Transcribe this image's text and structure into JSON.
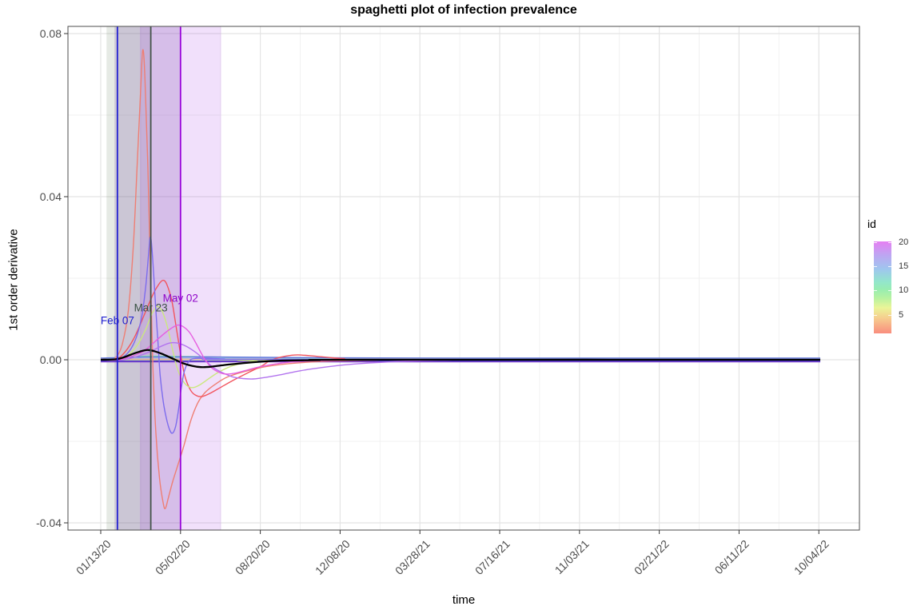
{
  "chart_data": {
    "type": "line",
    "title": "spaghetti plot of infection prevalence",
    "xlabel": "time",
    "ylabel": "1st order derivative",
    "x_axis": {
      "tick_labels": [
        "01/13/20",
        "05/02/20",
        "08/20/20",
        "12/08/20",
        "03/28/21",
        "07/16/21",
        "11/03/21",
        "02/21/22",
        "06/11/22",
        "10/04/22"
      ],
      "tick_t_days": [
        0,
        110,
        220,
        330,
        440,
        550,
        660,
        770,
        880,
        990
      ],
      "minor_t_days": [
        55,
        165,
        275,
        385,
        495,
        605,
        715,
        825,
        935
      ]
    },
    "y_axis": {
      "tick_labels": [
        "0.08",
        "0.04",
        "0.00",
        "-0.04"
      ],
      "tick_values": [
        0.08,
        0.04,
        0.0,
        -0.04
      ],
      "minor_values": [
        0.06,
        0.02,
        -0.02
      ],
      "range": [
        -0.0417,
        0.0817
      ]
    },
    "grid": {
      "major_color": "#e4e4e4",
      "minor_color": "#f0f0f0",
      "panel_border": "#4d4d4d",
      "background": "#ffffff"
    },
    "vlines": [
      {
        "label": "Feb 07",
        "t": 23,
        "color": "#2323d2",
        "label_color": "#1f1fd0",
        "label_v": 0.0096
      },
      {
        "label": "Mar 23",
        "t": 69,
        "color": "#44544a",
        "label_color": "#3a5244",
        "label_v": 0.0127
      },
      {
        "label": "May 02",
        "t": 110,
        "color": "#9806da",
        "label_color": "#8f06c9",
        "label_v": 0.0151
      }
    ],
    "bands": [
      {
        "t0": 8,
        "t1": 68,
        "color": "rgba(90,115,80,0.15)"
      },
      {
        "t0": 19,
        "t1": 110,
        "color": "rgba(110,75,160,0.22)"
      },
      {
        "t0": 54,
        "t1": 166,
        "color": "rgba(170,70,230,0.17)"
      }
    ],
    "legend": {
      "title": "id",
      "tick_labels": [
        "20",
        "15",
        "10",
        "5"
      ],
      "tick_ids": [
        20,
        15,
        10,
        5
      ],
      "id_top": 20.2,
      "id_bottom": 1.1,
      "gradient_stops": [
        {
          "pos": 0.0,
          "color": "#e57ff2"
        },
        {
          "pos": 0.15,
          "color": "#bda6f2"
        },
        {
          "pos": 0.3,
          "color": "#9fc6ee"
        },
        {
          "pos": 0.44,
          "color": "#93e6cb"
        },
        {
          "pos": 0.52,
          "color": "#98edb1"
        },
        {
          "pos": 0.62,
          "color": "#b8f2a0"
        },
        {
          "pos": 0.72,
          "color": "#eaf598"
        },
        {
          "pos": 0.84,
          "color": "#f6cb8e"
        },
        {
          "pos": 1.0,
          "color": "#f98d7e"
        }
      ]
    },
    "series": [
      {
        "name": "id-2-flat",
        "color": "#f6b17c",
        "width": 1.3,
        "points": [
          [
            0,
            0.0002
          ],
          [
            992,
            0.0002
          ]
        ]
      },
      {
        "name": "id-6-flat",
        "color": "#eef29a",
        "width": 1.3,
        "points": [
          [
            0,
            -0.0002
          ],
          [
            992,
            -0.0002
          ]
        ]
      },
      {
        "name": "id-10-flat",
        "color": "#8fe9ae",
        "width": 1.3,
        "points": [
          [
            0,
            0
          ],
          [
            30,
            0.0004
          ],
          [
            60,
            0.0009
          ],
          [
            120,
            0.0008
          ],
          [
            200,
            0.0005
          ],
          [
            300,
            0.0002
          ],
          [
            400,
            0.0001
          ],
          [
            992,
            0.0001
          ]
        ]
      },
      {
        "name": "id-14-flat",
        "color": "#9fc4ef",
        "width": 1.3,
        "points": [
          [
            0,
            0.0004
          ],
          [
            992,
            0.0004
          ]
        ]
      },
      {
        "name": "id-13-flat",
        "color": "#463bc4",
        "width": 1.3,
        "points": [
          [
            0,
            -0.0003
          ],
          [
            992,
            -0.0003
          ]
        ]
      },
      {
        "name": "id-19-flat",
        "color": "#7a3fd0",
        "width": 1.3,
        "points": [
          [
            0,
            -0.0005
          ],
          [
            992,
            -0.0005
          ]
        ]
      },
      {
        "name": "id-15-flat",
        "color": "#5e72d9",
        "width": 1.4,
        "points": [
          [
            0,
            0.0004
          ],
          [
            60,
            0.0007
          ],
          [
            150,
            0.0007
          ],
          [
            300,
            0.0005
          ],
          [
            500,
            0.0004
          ],
          [
            992,
            0.0004
          ]
        ]
      },
      {
        "name": "id-1-salmon",
        "color": "#ee7f74",
        "width": 1.4,
        "points": [
          [
            0,
            0
          ],
          [
            14,
            0
          ],
          [
            22,
            0.0008
          ],
          [
            30,
            0.004
          ],
          [
            38,
            0.012
          ],
          [
            45,
            0.028
          ],
          [
            50,
            0.047
          ],
          [
            55,
            0.066
          ],
          [
            58,
            0.076
          ],
          [
            61,
            0.069
          ],
          [
            65,
            0.047
          ],
          [
            69,
            0.018
          ],
          [
            72,
            -0.002
          ],
          [
            76,
            -0.018
          ],
          [
            81,
            -0.029
          ],
          [
            86,
            -0.035
          ],
          [
            89,
            -0.0365
          ],
          [
            93,
            -0.034
          ],
          [
            99,
            -0.03
          ],
          [
            106,
            -0.026
          ],
          [
            114,
            -0.0215
          ],
          [
            124,
            -0.015
          ],
          [
            134,
            -0.0105
          ],
          [
            144,
            -0.008
          ],
          [
            158,
            -0.006
          ],
          [
            175,
            -0.0042
          ],
          [
            200,
            -0.0028
          ],
          [
            230,
            -0.0016
          ],
          [
            270,
            -0.0008
          ],
          [
            320,
            -0.0003
          ],
          [
            380,
            -0.0001
          ],
          [
            430,
            0
          ],
          [
            992,
            0
          ]
        ]
      },
      {
        "name": "id-4-red",
        "color": "#f2545e",
        "width": 1.4,
        "points": [
          [
            0,
            0
          ],
          [
            18,
            0
          ],
          [
            30,
            0.0012
          ],
          [
            45,
            0.005
          ],
          [
            60,
            0.011
          ],
          [
            72,
            0.016
          ],
          [
            80,
            0.0185
          ],
          [
            86,
            0.0195
          ],
          [
            91,
            0.0185
          ],
          [
            98,
            0.0145
          ],
          [
            104,
            0.008
          ],
          [
            110,
            0.0015
          ],
          [
            116,
            -0.004
          ],
          [
            124,
            -0.0075
          ],
          [
            132,
            -0.0088
          ],
          [
            140,
            -0.009
          ],
          [
            150,
            -0.0083
          ],
          [
            165,
            -0.0068
          ],
          [
            185,
            -0.0048
          ],
          [
            205,
            -0.003
          ],
          [
            222,
            -0.0015
          ],
          [
            236,
            0
          ],
          [
            255,
            0.0009
          ],
          [
            272,
            0.0012
          ],
          [
            300,
            0.0008
          ],
          [
            335,
            0.0003
          ],
          [
            375,
            0
          ],
          [
            992,
            0
          ]
        ]
      },
      {
        "name": "id-7-yellowgreen",
        "color": "#cbe87e",
        "width": 1.4,
        "points": [
          [
            0,
            0
          ],
          [
            25,
            0
          ],
          [
            40,
            0.0015
          ],
          [
            52,
            0.004
          ],
          [
            62,
            0.0075
          ],
          [
            70,
            0.011
          ],
          [
            76,
            0.0128
          ],
          [
            80,
            0.013
          ],
          [
            85,
            0.0118
          ],
          [
            92,
            0.008
          ],
          [
            99,
            0.0025
          ],
          [
            105,
            -0.0018
          ],
          [
            112,
            -0.0048
          ],
          [
            120,
            -0.0065
          ],
          [
            128,
            -0.0068
          ],
          [
            138,
            -0.006
          ],
          [
            150,
            -0.0045
          ],
          [
            165,
            -0.0028
          ],
          [
            185,
            -0.0013
          ],
          [
            215,
            -0.0004
          ],
          [
            255,
            0
          ],
          [
            992,
            0
          ]
        ]
      },
      {
        "name": "id-17-bluepurple",
        "color": "#7d6ced",
        "width": 1.4,
        "points": [
          [
            0,
            0
          ],
          [
            20,
            0
          ],
          [
            32,
            0.0008
          ],
          [
            42,
            0.0028
          ],
          [
            50,
            0.006
          ],
          [
            57,
            0.011
          ],
          [
            62,
            0.018
          ],
          [
            66,
            0.026
          ],
          [
            68,
            0.03
          ],
          [
            70,
            0.0285
          ],
          [
            73,
            0.021
          ],
          [
            76,
            0.012
          ],
          [
            79,
            0.004
          ],
          [
            82,
            -0.004
          ],
          [
            86,
            -0.01
          ],
          [
            90,
            -0.014
          ],
          [
            95,
            -0.0172
          ],
          [
            99,
            -0.018
          ],
          [
            103,
            -0.0165
          ],
          [
            107,
            -0.0125
          ],
          [
            111,
            -0.007
          ],
          [
            115,
            -0.003
          ],
          [
            120,
            -0.0008
          ],
          [
            126,
            0.0002
          ],
          [
            140,
            0.0004
          ],
          [
            170,
            0.0002
          ],
          [
            210,
            0.0001
          ],
          [
            992,
            0
          ]
        ]
      },
      {
        "name": "id-18-violet",
        "color": "#b273ee",
        "width": 1.4,
        "points": [
          [
            0,
            0
          ],
          [
            30,
            0
          ],
          [
            50,
            0.0008
          ],
          [
            68,
            0.002
          ],
          [
            82,
            0.0032
          ],
          [
            93,
            0.004
          ],
          [
            100,
            0.0042
          ],
          [
            108,
            0.004
          ],
          [
            118,
            0.0033
          ],
          [
            128,
            0.0022
          ],
          [
            138,
            0.0008
          ],
          [
            146,
            -0.0005
          ],
          [
            156,
            -0.002
          ],
          [
            168,
            -0.0032
          ],
          [
            182,
            -0.0042
          ],
          [
            196,
            -0.0046
          ],
          [
            210,
            -0.0047
          ],
          [
            228,
            -0.0043
          ],
          [
            250,
            -0.0036
          ],
          [
            275,
            -0.0027
          ],
          [
            305,
            -0.0019
          ],
          [
            340,
            -0.0012
          ],
          [
            380,
            -0.0007
          ],
          [
            430,
            -0.0003
          ],
          [
            480,
            -0.0001
          ],
          [
            530,
            0
          ],
          [
            992,
            0
          ]
        ]
      },
      {
        "name": "id-20-magenta",
        "color": "#e65fe0",
        "width": 1.4,
        "points": [
          [
            0,
            0
          ],
          [
            25,
            0
          ],
          [
            45,
            0.001
          ],
          [
            60,
            0.0022
          ],
          [
            75,
            0.0045
          ],
          [
            88,
            0.0065
          ],
          [
            98,
            0.0078
          ],
          [
            106,
            0.0085
          ],
          [
            113,
            0.0082
          ],
          [
            122,
            0.0068
          ],
          [
            130,
            0.0045
          ],
          [
            138,
            0.0018
          ],
          [
            144,
            0
          ],
          [
            152,
            -0.0018
          ],
          [
            160,
            -0.0028
          ],
          [
            168,
            -0.0034
          ],
          [
            175,
            -0.0035
          ],
          [
            185,
            -0.0033
          ],
          [
            198,
            -0.0027
          ],
          [
            215,
            -0.0019
          ],
          [
            235,
            -0.0012
          ],
          [
            260,
            -0.0006
          ],
          [
            290,
            -0.0003
          ],
          [
            330,
            -0.0001
          ],
          [
            380,
            0
          ],
          [
            992,
            0
          ]
        ]
      },
      {
        "name": "mean-line",
        "color": "#000000",
        "width": 2.3,
        "points": [
          [
            0,
            0
          ],
          [
            20,
            0.0001
          ],
          [
            32,
            0.0006
          ],
          [
            42,
            0.0013
          ],
          [
            52,
            0.0019
          ],
          [
            60,
            0.0023
          ],
          [
            66,
            0.0024
          ],
          [
            74,
            0.0021
          ],
          [
            84,
            0.0015
          ],
          [
            94,
            0.0007
          ],
          [
            104,
            -0.0001
          ],
          [
            114,
            -0.0009
          ],
          [
            126,
            -0.0015
          ],
          [
            138,
            -0.0018
          ],
          [
            152,
            -0.0017
          ],
          [
            170,
            -0.0013
          ],
          [
            192,
            -0.0009
          ],
          [
            218,
            -0.0005
          ],
          [
            250,
            -0.0002
          ],
          [
            300,
            -0.0001
          ],
          [
            350,
            0
          ],
          [
            992,
            0
          ]
        ]
      }
    ]
  }
}
